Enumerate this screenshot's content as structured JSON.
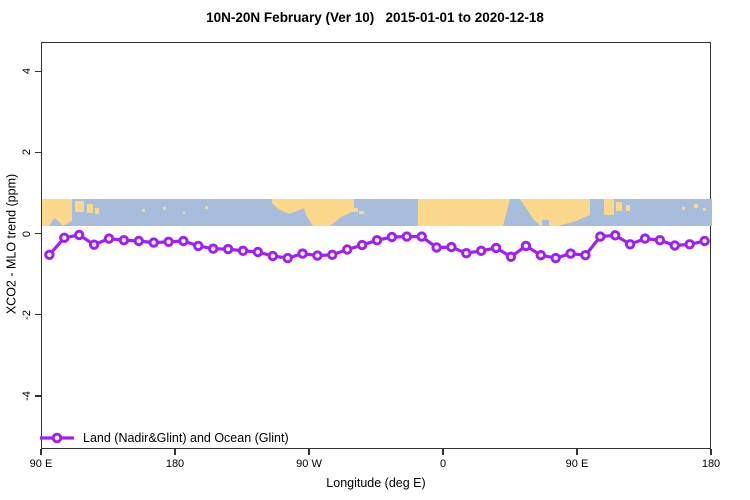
{
  "title": "10N-20N February (Ver 10)   2015-01-01 to 2020-12-18",
  "legend": {
    "label": "Land (Nadir&Glint) and Ocean (Glint)"
  },
  "colors": {
    "series_purple": "#A020F0",
    "marker_fill": "#ffffff",
    "ocean_blue": "#A7BDDB",
    "land_yellow": "#FBD88B",
    "axis": "#333333",
    "text": "#000000",
    "background": "#ffffff"
  },
  "chart_data": {
    "type": "line",
    "title": "10N-20N February (Ver 10)   2015-01-01 to 2020-12-18",
    "xlabel": "Longitude (deg E)",
    "ylabel": "XCO2 - MLO trend (ppm)",
    "xlim": [
      90,
      540
    ],
    "ylim": [
      -5.31,
      4.72
    ],
    "grid": false,
    "legend_position": "bottom-left-inside",
    "x_ticks": [
      {
        "pos": 90,
        "label": "90 E"
      },
      {
        "pos": 180,
        "label": "180"
      },
      {
        "pos": 270,
        "label": "90 W"
      },
      {
        "pos": 360,
        "label": "0"
      },
      {
        "pos": 450,
        "label": "90 E"
      },
      {
        "pos": 540,
        "label": "180"
      }
    ],
    "y_ticks": [
      {
        "pos": -4,
        "label": "-4"
      },
      {
        "pos": -2,
        "label": "-2"
      },
      {
        "pos": 0,
        "label": "0"
      },
      {
        "pos": 2,
        "label": "2"
      },
      {
        "pos": 4,
        "label": "4"
      }
    ],
    "series": [
      {
        "name": "Land (Nadir&Glint) and Ocean (Glint)",
        "marker": "open-circle",
        "x": [
          95,
          105,
          115,
          125,
          135,
          145,
          155,
          165,
          175,
          185,
          195,
          205,
          215,
          225,
          235,
          245,
          255,
          265,
          275,
          285,
          295,
          305,
          315,
          325,
          335,
          345,
          355,
          365,
          375,
          385,
          395,
          405,
          415,
          425,
          435,
          445,
          455,
          465,
          475,
          485,
          495,
          505,
          515,
          525,
          535
        ],
        "y": [
          -0.5,
          -0.08,
          -0.01,
          -0.25,
          -0.1,
          -0.14,
          -0.16,
          -0.2,
          -0.18,
          -0.16,
          -0.28,
          -0.35,
          -0.36,
          -0.4,
          -0.43,
          -0.53,
          -0.58,
          -0.47,
          -0.52,
          -0.5,
          -0.37,
          -0.26,
          -0.14,
          -0.06,
          -0.05,
          -0.05,
          -0.32,
          -0.31,
          -0.46,
          -0.4,
          -0.33,
          -0.55,
          -0.28,
          -0.51,
          -0.58,
          -0.47,
          -0.51,
          -0.05,
          -0.02,
          -0.24,
          -0.1,
          -0.14,
          -0.27,
          -0.24,
          -0.16
        ]
      }
    ],
    "map_strip": {
      "description": "world-map latitude band 10N-20N drawn across plot",
      "ppm_range": [
        0.2,
        0.865
      ],
      "local_height": 27,
      "local_width": 670,
      "land_shapes": [
        {
          "t": "poly",
          "pts": [
            [
              0,
              0
            ],
            [
              30,
              0
            ],
            [
              30,
              22
            ],
            [
              21,
              27
            ],
            [
              13,
              19
            ],
            [
              7,
              27
            ],
            [
              0,
              27
            ]
          ]
        },
        {
          "t": "rect",
          "r": [
            10,
            21,
            5,
            6
          ],
          "water": true
        },
        {
          "t": "rect",
          "r": [
            33,
            2,
            9,
            11
          ]
        },
        {
          "t": "rect",
          "r": [
            45,
            5,
            6,
            9
          ]
        },
        {
          "t": "rect",
          "r": [
            53,
            9,
            4,
            6
          ]
        },
        {
          "t": "rect",
          "r": [
            100,
            10,
            3,
            3
          ]
        },
        {
          "t": "rect",
          "r": [
            121,
            8,
            3,
            3
          ]
        },
        {
          "t": "rect",
          "r": [
            141,
            13,
            2,
            2
          ]
        },
        {
          "t": "rect",
          "r": [
            163,
            7,
            3,
            3
          ]
        },
        {
          "t": "poly",
          "pts": [
            [
              230,
              0
            ],
            [
              262,
              0
            ],
            [
              262,
              9
            ],
            [
              247,
              15
            ],
            [
              236,
              10
            ],
            [
              230,
              4
            ]
          ]
        },
        {
          "t": "poly",
          "pts": [
            [
              262,
              0
            ],
            [
              312,
              0
            ],
            [
              312,
              12
            ],
            [
              299,
              18
            ],
            [
              288,
              27
            ],
            [
              271,
              27
            ],
            [
              264,
              16
            ],
            [
              262,
              9
            ]
          ]
        },
        {
          "t": "rect",
          "r": [
            301,
            6,
            7,
            5
          ]
        },
        {
          "t": "rect",
          "r": [
            310,
            9,
            6,
            4
          ]
        },
        {
          "t": "rect",
          "r": [
            317,
            12,
            5,
            3
          ]
        },
        {
          "t": "rect",
          "r": [
            376,
            0,
            117,
            27
          ]
        },
        {
          "t": "poly",
          "pts": [
            [
              468,
              0
            ],
            [
              478,
              0
            ],
            [
              496,
              27
            ],
            [
              461,
              27
            ]
          ],
          "water": true
        },
        {
          "t": "poly",
          "pts": [
            [
              478,
              0
            ],
            [
              548,
              0
            ],
            [
              548,
              16
            ],
            [
              534,
              22
            ],
            [
              516,
              27
            ],
            [
              498,
              27
            ],
            [
              492,
              20
            ],
            [
              482,
              6
            ]
          ]
        },
        {
          "t": "rect",
          "r": [
            500,
            21,
            7,
            6
          ],
          "water": true
        },
        {
          "t": "rect",
          "r": [
            562,
            0,
            10,
            16
          ]
        },
        {
          "t": "rect",
          "r": [
            574,
            3,
            6,
            9
          ]
        },
        {
          "t": "rect",
          "r": [
            584,
            6,
            4,
            6
          ]
        },
        {
          "t": "rect",
          "r": [
            640,
            8,
            3,
            3
          ]
        },
        {
          "t": "rect",
          "r": [
            652,
            5,
            4,
            4
          ]
        },
        {
          "t": "rect",
          "r": [
            661,
            9,
            3,
            3
          ]
        }
      ]
    }
  }
}
